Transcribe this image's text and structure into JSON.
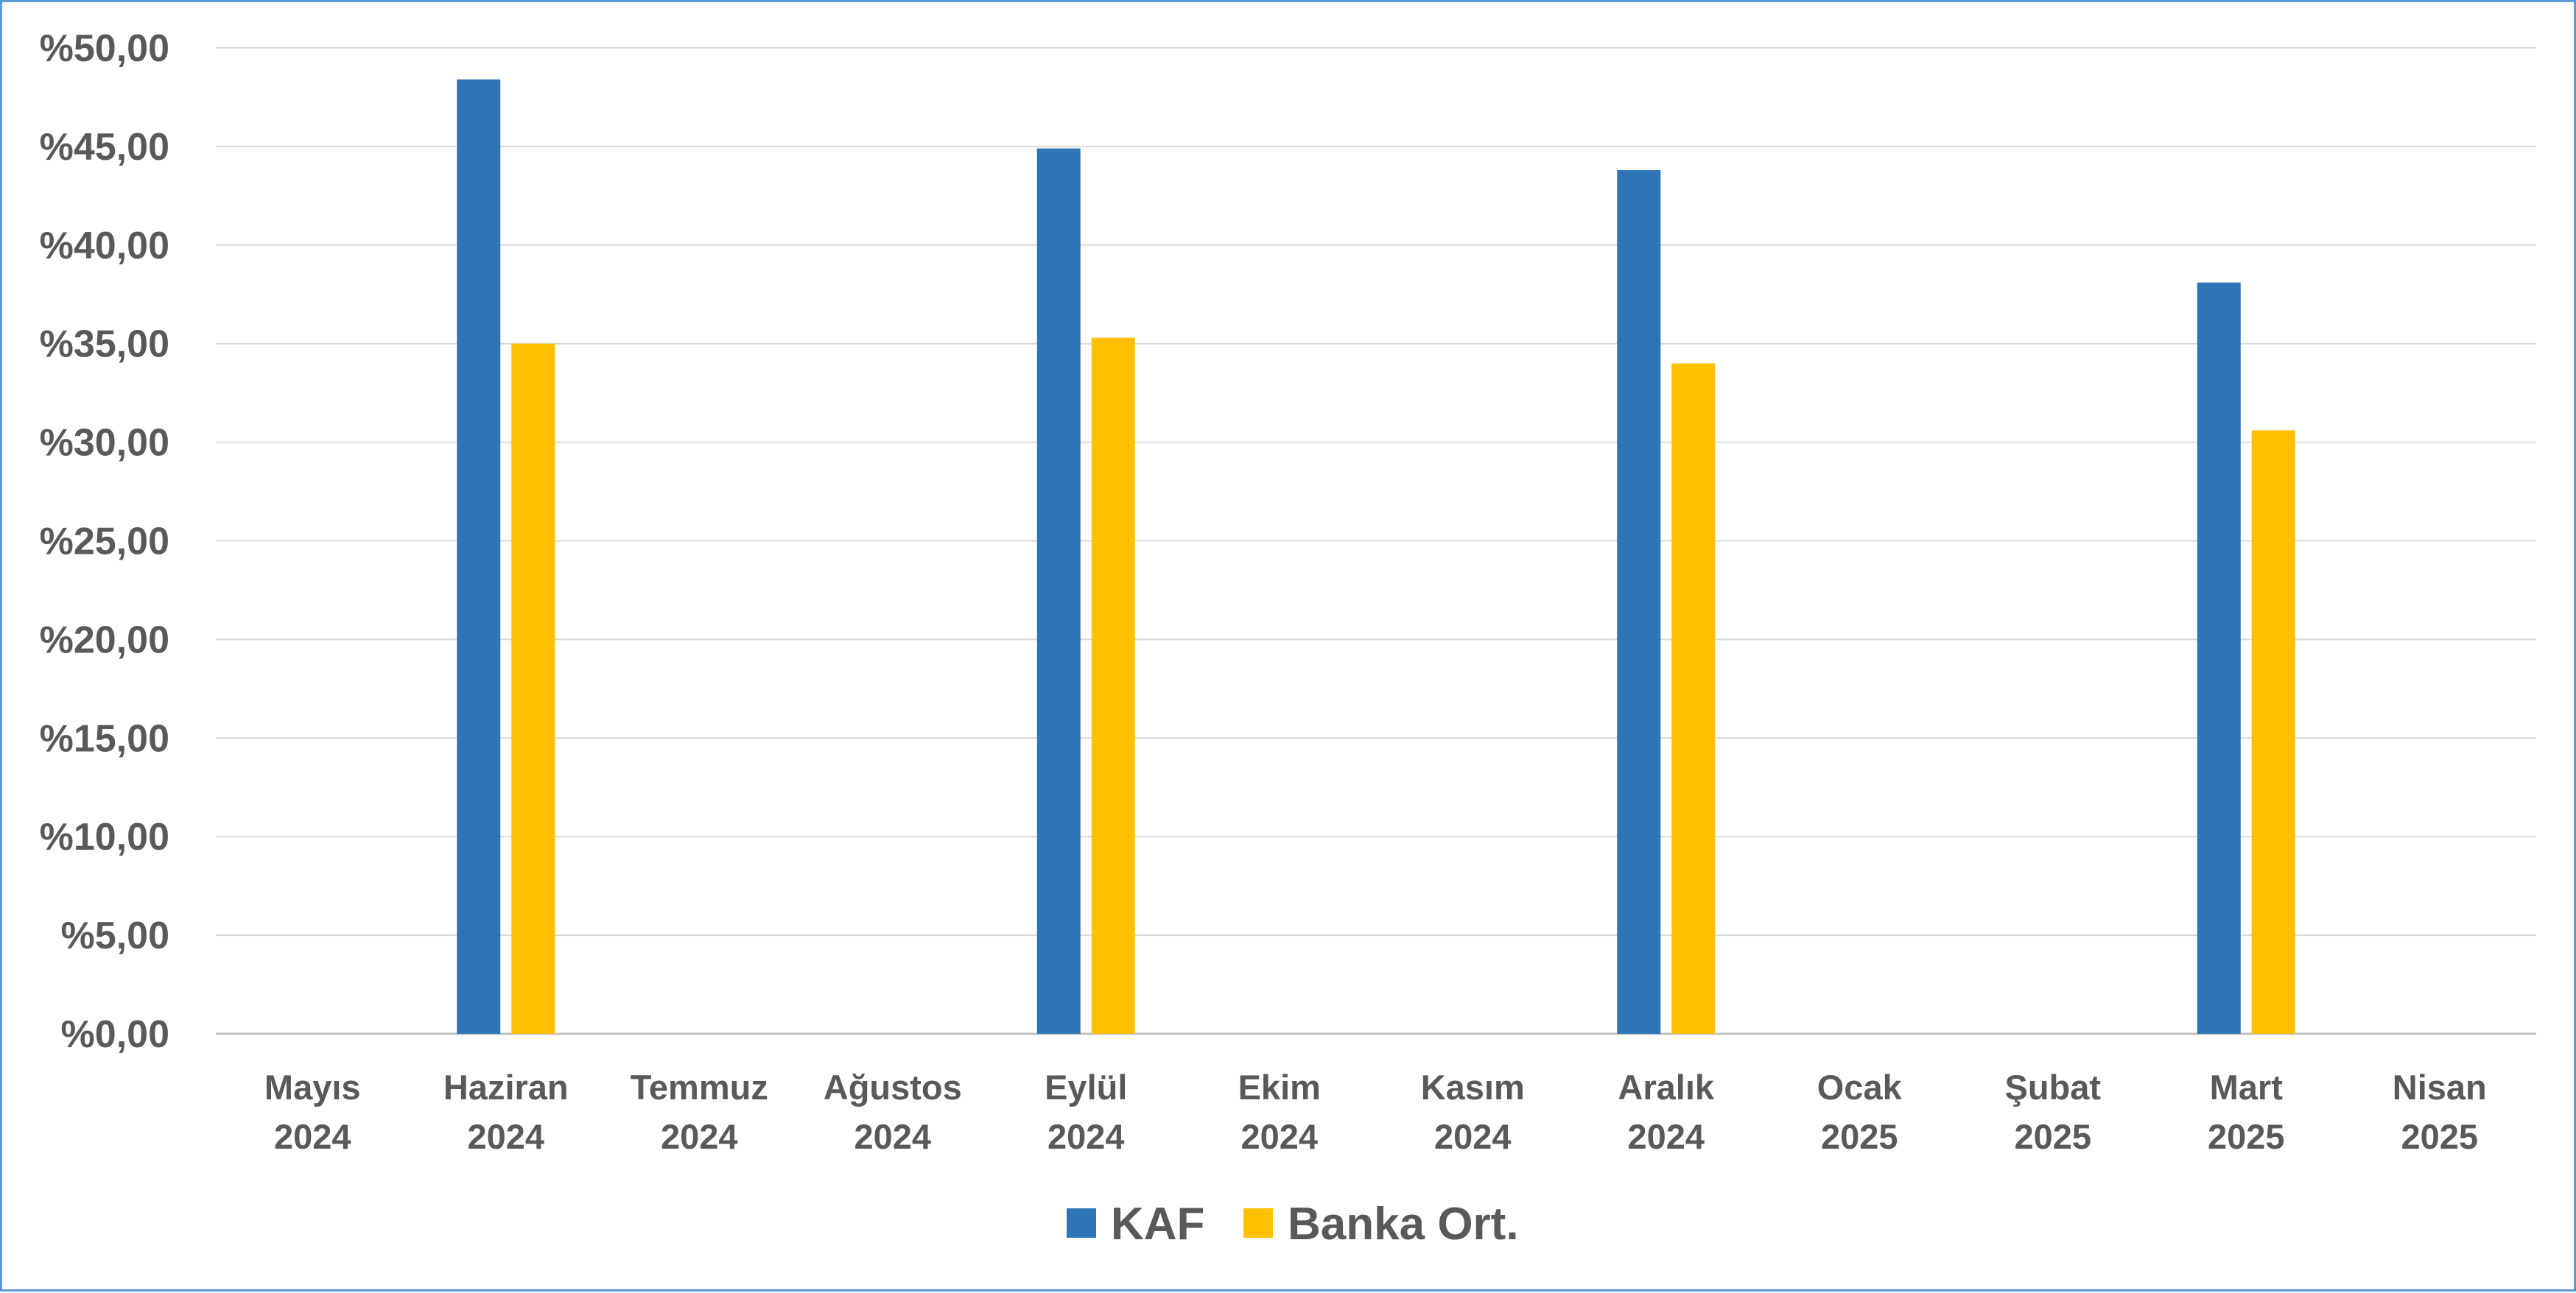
{
  "chart_data": {
    "type": "bar",
    "title": "",
    "xlabel": "",
    "ylabel": "",
    "ylim": [
      0,
      50
    ],
    "ytick_step": 5,
    "ytick_labels": [
      "%0,00",
      "%5,00",
      "%10,00",
      "%15,00",
      "%20,00",
      "%25,00",
      "%30,00",
      "%35,00",
      "%40,00",
      "%45,00",
      "%50,00"
    ],
    "categories": [
      [
        "Mayıs",
        "2024"
      ],
      [
        "Haziran",
        "2024"
      ],
      [
        "Temmuz",
        "2024"
      ],
      [
        "Ağustos",
        "2024"
      ],
      [
        "Eylül",
        "2024"
      ],
      [
        "Ekim",
        "2024"
      ],
      [
        "Kasım",
        "2024"
      ],
      [
        "Aralık",
        "2024"
      ],
      [
        "Ocak",
        "2025"
      ],
      [
        "Şubat",
        "2025"
      ],
      [
        "Mart",
        "2025"
      ],
      [
        "Nisan",
        "2025"
      ]
    ],
    "series": [
      {
        "name": "KAF",
        "color": "#2E75B6",
        "values": [
          null,
          48.4,
          null,
          null,
          44.9,
          null,
          null,
          43.8,
          null,
          null,
          38.1,
          null
        ]
      },
      {
        "name": "Banka Ort.",
        "color": "#FFC000",
        "values": [
          null,
          35.0,
          null,
          null,
          35.3,
          null,
          null,
          34.0,
          null,
          null,
          30.6,
          null
        ]
      }
    ],
    "grid": true,
    "grid_color": "#D9D9D9",
    "legend_position": "bottom"
  }
}
